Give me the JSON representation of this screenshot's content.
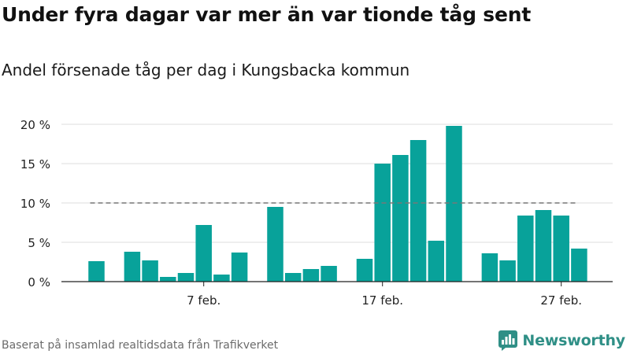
{
  "title": "Under fyra dagar var mer än var tionde tåg sent",
  "subtitle": "Andel försenade tåg per dag i Kungsbacka kommun",
  "footer": "Baserat på insamlad realtidsdata från Trafikverket",
  "brand": {
    "name": "Newsworthy",
    "icon": "newsworthy-logo-icon"
  },
  "colors": {
    "bar": "#08a29a",
    "reference_line": "#777777",
    "grid": "#dddddd",
    "brand": "#2f8f86"
  },
  "chart_data": {
    "type": "bar",
    "x_unit": "day of February",
    "x": [
      1,
      3,
      4,
      5,
      6,
      7,
      8,
      9,
      11,
      12,
      13,
      14,
      16,
      17,
      18,
      19,
      20,
      21,
      23,
      24,
      25,
      26,
      27,
      28
    ],
    "values": [
      2.6,
      3.8,
      2.7,
      0.6,
      1.1,
      7.2,
      0.9,
      3.7,
      9.5,
      1.1,
      1.6,
      2.0,
      2.9,
      15.0,
      16.1,
      18.0,
      5.2,
      19.8,
      3.6,
      2.7,
      8.4,
      9.1,
      8.4,
      4.2
    ],
    "xticks": [
      {
        "day": 7,
        "label": "7 feb."
      },
      {
        "day": 17,
        "label": "17 feb."
      },
      {
        "day": 27,
        "label": "27 feb."
      }
    ],
    "yticks": [
      {
        "value": 0,
        "label": "0 %"
      },
      {
        "value": 5,
        "label": "5 %"
      },
      {
        "value": 10,
        "label": "10 %"
      },
      {
        "value": 15,
        "label": "15 %"
      },
      {
        "value": 20,
        "label": "20 %"
      }
    ],
    "ylim": [
      0,
      20
    ],
    "reference_line": {
      "value": 10,
      "style": "dashed"
    },
    "grid": "horizontal",
    "xlabel": "",
    "ylabel": ""
  }
}
